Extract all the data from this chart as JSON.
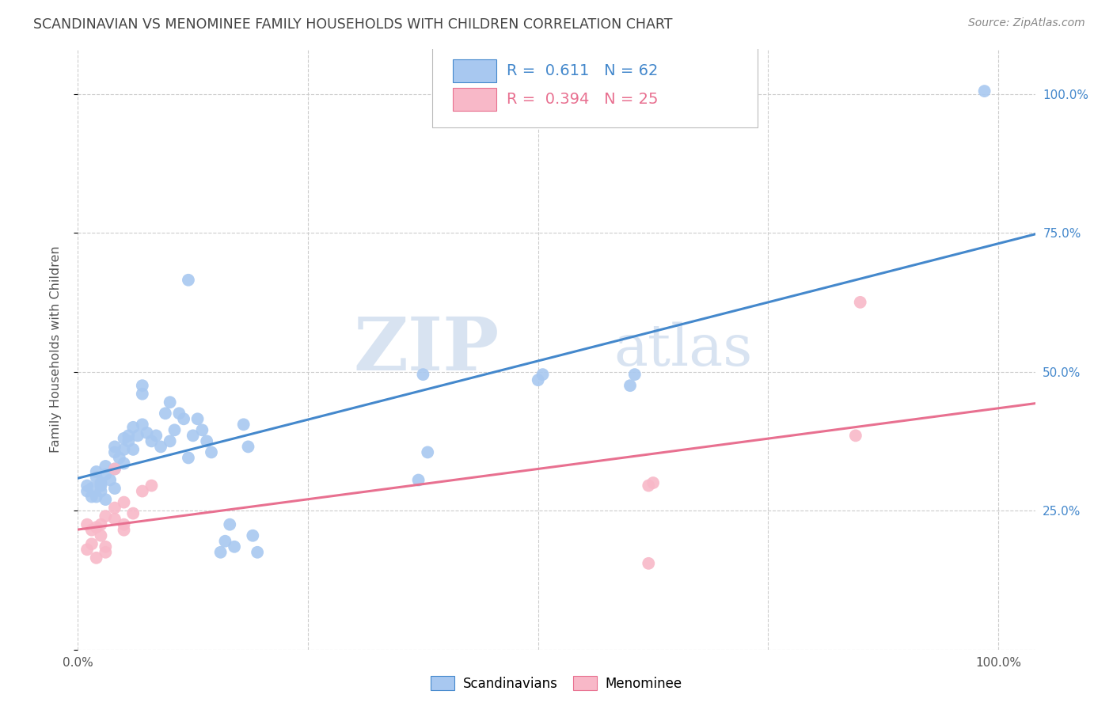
{
  "title": "SCANDINAVIAN VS MENOMINEE FAMILY HOUSEHOLDS WITH CHILDREN CORRELATION CHART",
  "source": "Source: ZipAtlas.com",
  "ylabel": "Family Households with Children",
  "xlabel": "",
  "xlim": [
    0,
    1.04
  ],
  "ylim": [
    0,
    1.08
  ],
  "x_ticks": [
    0.0,
    0.25,
    0.5,
    0.75,
    1.0
  ],
  "x_tick_labels": [
    "0.0%",
    "",
    "",
    "",
    "100.0%"
  ],
  "y_ticks": [
    0.0,
    0.25,
    0.5,
    0.75,
    1.0
  ],
  "y_tick_labels_right": [
    "",
    "25.0%",
    "50.0%",
    "75.0%",
    "100.0%"
  ],
  "watermark_zip": "ZIP",
  "watermark_atlas": "atlas",
  "scatter_blue": [
    [
      0.01,
      0.285
    ],
    [
      0.01,
      0.295
    ],
    [
      0.015,
      0.275
    ],
    [
      0.015,
      0.29
    ],
    [
      0.02,
      0.31
    ],
    [
      0.02,
      0.275
    ],
    [
      0.02,
      0.32
    ],
    [
      0.025,
      0.3
    ],
    [
      0.025,
      0.285
    ],
    [
      0.025,
      0.295
    ],
    [
      0.03,
      0.315
    ],
    [
      0.03,
      0.27
    ],
    [
      0.03,
      0.33
    ],
    [
      0.035,
      0.305
    ],
    [
      0.04,
      0.325
    ],
    [
      0.04,
      0.29
    ],
    [
      0.04,
      0.355
    ],
    [
      0.04,
      0.365
    ],
    [
      0.045,
      0.345
    ],
    [
      0.05,
      0.36
    ],
    [
      0.05,
      0.38
    ],
    [
      0.05,
      0.335
    ],
    [
      0.055,
      0.375
    ],
    [
      0.055,
      0.385
    ],
    [
      0.06,
      0.4
    ],
    [
      0.06,
      0.36
    ],
    [
      0.065,
      0.385
    ],
    [
      0.07,
      0.46
    ],
    [
      0.07,
      0.475
    ],
    [
      0.07,
      0.405
    ],
    [
      0.075,
      0.39
    ],
    [
      0.08,
      0.375
    ],
    [
      0.085,
      0.385
    ],
    [
      0.09,
      0.365
    ],
    [
      0.095,
      0.425
    ],
    [
      0.1,
      0.445
    ],
    [
      0.1,
      0.375
    ],
    [
      0.105,
      0.395
    ],
    [
      0.11,
      0.425
    ],
    [
      0.115,
      0.415
    ],
    [
      0.12,
      0.345
    ],
    [
      0.125,
      0.385
    ],
    [
      0.13,
      0.415
    ],
    [
      0.135,
      0.395
    ],
    [
      0.14,
      0.375
    ],
    [
      0.145,
      0.355
    ],
    [
      0.155,
      0.175
    ],
    [
      0.16,
      0.195
    ],
    [
      0.165,
      0.225
    ],
    [
      0.17,
      0.185
    ],
    [
      0.18,
      0.405
    ],
    [
      0.185,
      0.365
    ],
    [
      0.19,
      0.205
    ],
    [
      0.195,
      0.175
    ],
    [
      0.12,
      0.665
    ],
    [
      0.37,
      0.305
    ],
    [
      0.375,
      0.495
    ],
    [
      0.38,
      0.355
    ],
    [
      0.5,
      0.485
    ],
    [
      0.505,
      0.495
    ],
    [
      0.6,
      0.475
    ],
    [
      0.605,
      0.495
    ],
    [
      0.985,
      1.005
    ]
  ],
  "scatter_pink": [
    [
      0.01,
      0.225
    ],
    [
      0.01,
      0.18
    ],
    [
      0.015,
      0.215
    ],
    [
      0.015,
      0.19
    ],
    [
      0.02,
      0.22
    ],
    [
      0.02,
      0.165
    ],
    [
      0.025,
      0.225
    ],
    [
      0.025,
      0.205
    ],
    [
      0.03,
      0.24
    ],
    [
      0.03,
      0.185
    ],
    [
      0.03,
      0.175
    ],
    [
      0.04,
      0.325
    ],
    [
      0.04,
      0.235
    ],
    [
      0.04,
      0.255
    ],
    [
      0.05,
      0.265
    ],
    [
      0.05,
      0.225
    ],
    [
      0.05,
      0.215
    ],
    [
      0.06,
      0.245
    ],
    [
      0.07,
      0.285
    ],
    [
      0.08,
      0.295
    ],
    [
      0.62,
      0.155
    ],
    [
      0.62,
      0.295
    ],
    [
      0.625,
      0.3
    ],
    [
      0.845,
      0.385
    ],
    [
      0.85,
      0.625
    ]
  ],
  "blue_color": "#a8c8f0",
  "pink_color": "#f8b8c8",
  "blue_line_color": "#4488cc",
  "pink_line_color": "#e87090",
  "grid_color": "#cccccc",
  "background_color": "#ffffff",
  "title_color": "#444444",
  "source_color": "#888888",
  "axis_label_color": "#4488cc",
  "legend_text_color": "#4488cc"
}
